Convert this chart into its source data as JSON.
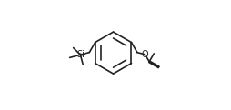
{
  "background_color": "#ffffff",
  "line_color": "#222222",
  "line_width": 1.2,
  "figsize": [
    2.54,
    1.21
  ],
  "dpi": 100,
  "bx": 0.48,
  "by": 0.52,
  "br": 0.19
}
